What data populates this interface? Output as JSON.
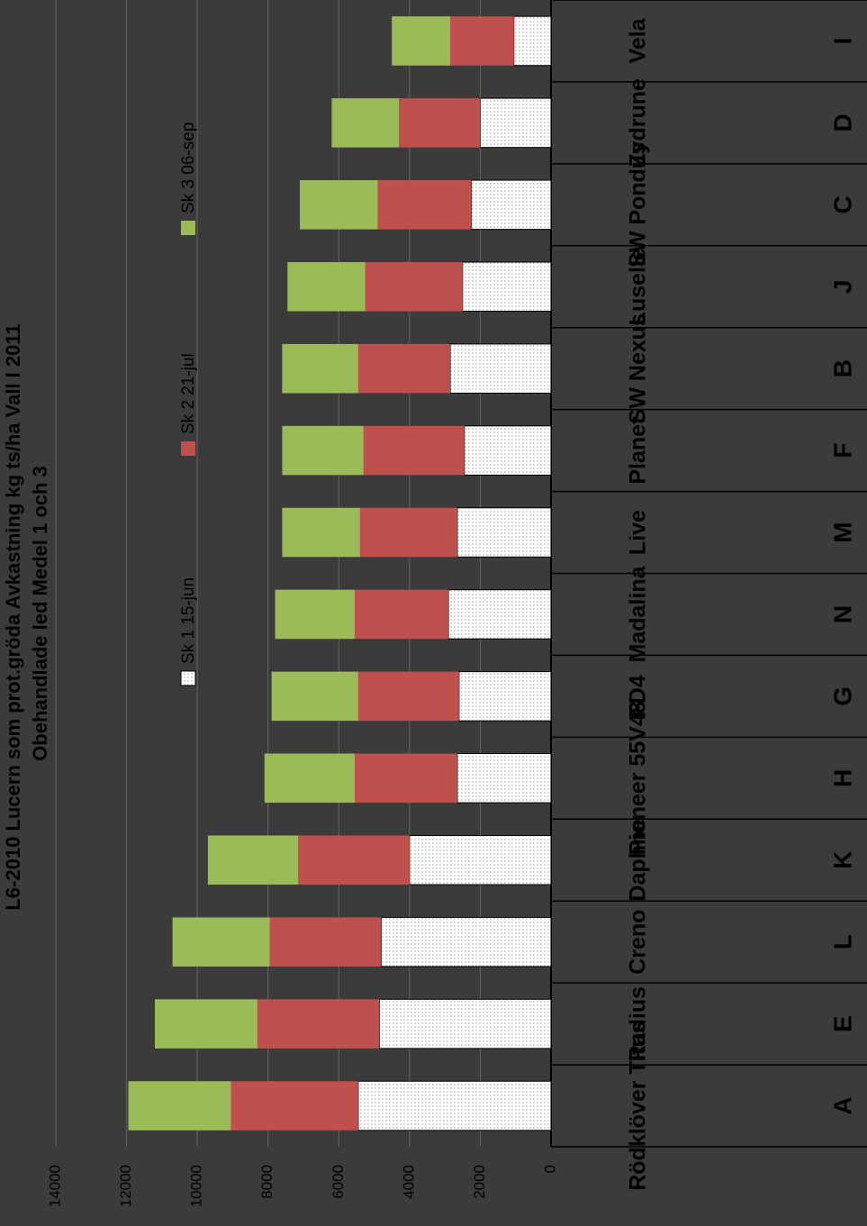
{
  "chart_data": {
    "type": "stacked_bar",
    "title": "L6-2010 Lucern som prot.gröda Avkastning kg ts/ha  Vall I 2011",
    "subtitle": "Obehandlade led Medel 1 och 3",
    "categories": [
      "Rödklöver Titus",
      "Radius",
      "Creno",
      "Daphne",
      "Pioneer 55V48",
      "FD4",
      "Madalina",
      "Live",
      "Planet",
      "SW Nexus",
      "Luselle",
      "SW Pondus",
      "Zydrune",
      "Vela"
    ],
    "category_codes": [
      "A",
      "E",
      "L",
      "K",
      "H",
      "G",
      "N",
      "M",
      "F",
      "B",
      "J",
      "C",
      "D",
      "I"
    ],
    "series": [
      {
        "name": "Sk 1 15-jun",
        "color": "#ffffff",
        "values": [
          5450,
          4850,
          4800,
          4000,
          2650,
          2600,
          2900,
          2650,
          2450,
          2850,
          2500,
          2250,
          2000,
          1050
        ]
      },
      {
        "name": "Sk 2 21-jul",
        "color": "#c0504d",
        "values": [
          3600,
          3450,
          3150,
          3150,
          2900,
          2850,
          2650,
          2750,
          2850,
          2600,
          2750,
          2650,
          2300,
          1800
        ]
      },
      {
        "name": "Sk 3 06-sep",
        "color": "#9bbb59",
        "values": [
          2900,
          2900,
          2750,
          2550,
          2550,
          2450,
          2250,
          2200,
          2300,
          2150,
          2200,
          2200,
          1900,
          1650
        ]
      }
    ],
    "ylim": [
      0,
      14000
    ],
    "yticks": [
      0,
      2000,
      4000,
      6000,
      8000,
      10000,
      12000,
      14000
    ],
    "grid": true
  }
}
